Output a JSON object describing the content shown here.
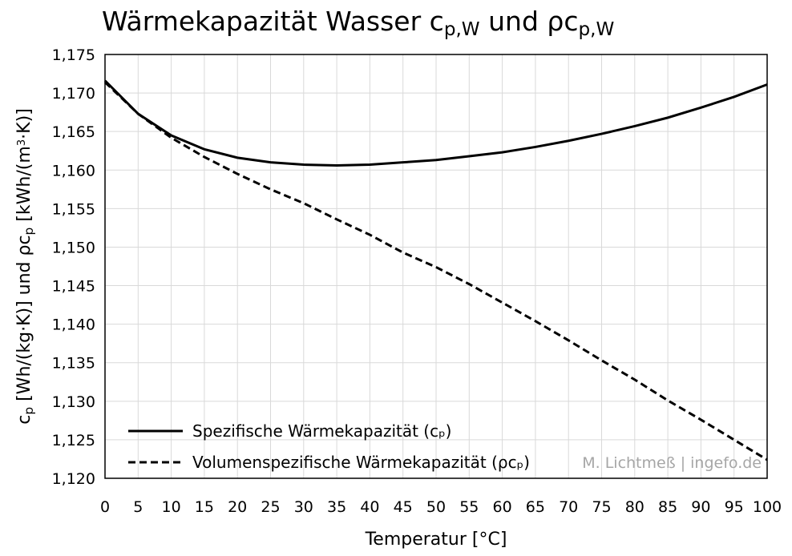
{
  "chart_data": {
    "type": "line",
    "title": [
      {
        "text": "Wärmekapazität Wasser c",
        "sub": false
      },
      {
        "text": "p,W",
        "sub": true
      },
      {
        "text": " und ρc",
        "sub": false
      },
      {
        "text": "p,W",
        "sub": true
      }
    ],
    "x_label": "Temperatur [°C]",
    "y_label": [
      {
        "text": "c",
        "sub": false
      },
      {
        "text": "p",
        "sub": true
      },
      {
        "text": " [Wh/(kg·K)] und ρc",
        "sub": false
      },
      {
        "text": "p",
        "sub": true
      },
      {
        "text": " [kWh/(m",
        "sub": false
      },
      {
        "text": "3",
        "sup": true
      },
      {
        "text": "·K)]",
        "sub": false
      }
    ],
    "annotation": "M. Lichtmeß | ingefo.de",
    "x": [
      0,
      5,
      10,
      15,
      20,
      25,
      30,
      35,
      40,
      45,
      50,
      55,
      60,
      65,
      70,
      75,
      80,
      85,
      90,
      95,
      100
    ],
    "series": [
      {
        "name": "Spezifische Wärmekapazität (cₚ)",
        "color": "#000000",
        "dash": false,
        "values": [
          1.1716,
          1.1673,
          1.1645,
          1.1627,
          1.1616,
          1.161,
          1.1607,
          1.1606,
          1.1607,
          1.161,
          1.1613,
          1.1618,
          1.1623,
          1.163,
          1.1638,
          1.1647,
          1.1657,
          1.1668,
          1.1681,
          1.1695,
          1.1711
        ]
      },
      {
        "name": "Volumenspezifische Wärmekapazität (ρcₚ)",
        "color": "#000000",
        "dash": true,
        "values": [
          1.1714,
          1.1673,
          1.1642,
          1.1617,
          1.1595,
          1.1575,
          1.1557,
          1.1536,
          1.1516,
          1.1493,
          1.1474,
          1.1452,
          1.1428,
          1.1404,
          1.1379,
          1.1353,
          1.1328,
          1.1301,
          1.1276,
          1.125,
          1.1224
        ]
      }
    ],
    "xlim": [
      0,
      100
    ],
    "xticks": [
      0,
      5,
      10,
      15,
      20,
      25,
      30,
      35,
      40,
      45,
      50,
      55,
      60,
      65,
      70,
      75,
      80,
      85,
      90,
      95,
      100
    ],
    "ylim": [
      1.12,
      1.175
    ],
    "yticks": [
      {
        "value": 1.12,
        "label": "1,120"
      },
      {
        "value": 1.125,
        "label": "1,125"
      },
      {
        "value": 1.13,
        "label": "1,130"
      },
      {
        "value": 1.135,
        "label": "1,135"
      },
      {
        "value": 1.14,
        "label": "1,140"
      },
      {
        "value": 1.145,
        "label": "1,145"
      },
      {
        "value": 1.15,
        "label": "1,150"
      },
      {
        "value": 1.155,
        "label": "1,155"
      },
      {
        "value": 1.16,
        "label": "1,160"
      },
      {
        "value": 1.165,
        "label": "1,165"
      },
      {
        "value": 1.17,
        "label": "1,170"
      },
      {
        "value": 1.175,
        "label": "1,175"
      }
    ],
    "grid": true,
    "legend": "lower left"
  }
}
